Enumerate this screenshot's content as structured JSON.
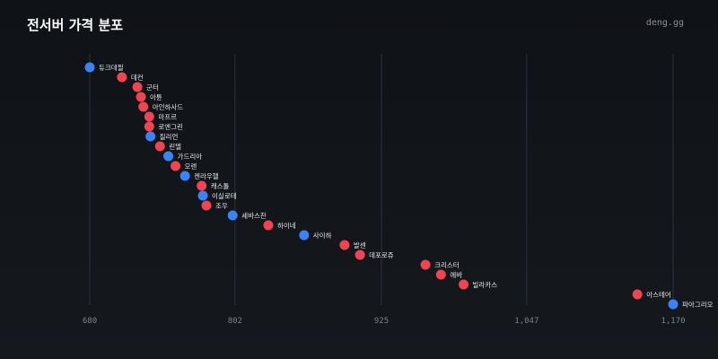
{
  "header": {
    "title": "전서버 가격 분포",
    "brand": "deng.gg"
  },
  "chart_data": {
    "type": "scatter",
    "title": "전서버 가격 분포",
    "xlabel": "",
    "ylabel": "",
    "xlim": [
      680,
      1170
    ],
    "xticks": [
      680,
      802,
      925,
      1047,
      1170
    ],
    "xtick_labels": [
      "680",
      "802",
      "925",
      "1,047",
      "1,170"
    ],
    "grid": "vertical",
    "colors": {
      "blue": "#3b82f6",
      "red": "#ef4452"
    },
    "points": [
      {
        "label": "듀크데필",
        "x": 680,
        "color": "blue"
      },
      {
        "label": "데컨",
        "x": 707,
        "color": "red"
      },
      {
        "label": "군터",
        "x": 720,
        "color": "red"
      },
      {
        "label": "아튠",
        "x": 723,
        "color": "red"
      },
      {
        "label": "아인하사드",
        "x": 725,
        "color": "red"
      },
      {
        "label": "마프르",
        "x": 730,
        "color": "red"
      },
      {
        "label": "로엔그린",
        "x": 730,
        "color": "red"
      },
      {
        "label": "질리언",
        "x": 731,
        "color": "blue"
      },
      {
        "label": "린델",
        "x": 739,
        "color": "red"
      },
      {
        "label": "가드리아",
        "x": 746,
        "color": "blue"
      },
      {
        "label": "오렌",
        "x": 752,
        "color": "red"
      },
      {
        "label": "켄라우헬",
        "x": 760,
        "color": "blue"
      },
      {
        "label": "캐스톨",
        "x": 774,
        "color": "red"
      },
      {
        "label": "이실로테",
        "x": 775,
        "color": "blue"
      },
      {
        "label": "조우",
        "x": 778,
        "color": "red"
      },
      {
        "label": "세바스찬",
        "x": 800,
        "color": "blue"
      },
      {
        "label": "하이네",
        "x": 830,
        "color": "red"
      },
      {
        "label": "사이하",
        "x": 860,
        "color": "blue"
      },
      {
        "label": "발센",
        "x": 894,
        "color": "red"
      },
      {
        "label": "데포로쥬",
        "x": 907,
        "color": "red"
      },
      {
        "label": "크리스터",
        "x": 962,
        "color": "red"
      },
      {
        "label": "에바",
        "x": 975,
        "color": "red"
      },
      {
        "label": "빌라카스",
        "x": 994,
        "color": "red"
      },
      {
        "label": "아스테어",
        "x": 1140,
        "color": "red"
      },
      {
        "label": "파아그리오",
        "x": 1170,
        "color": "blue"
      }
    ]
  }
}
